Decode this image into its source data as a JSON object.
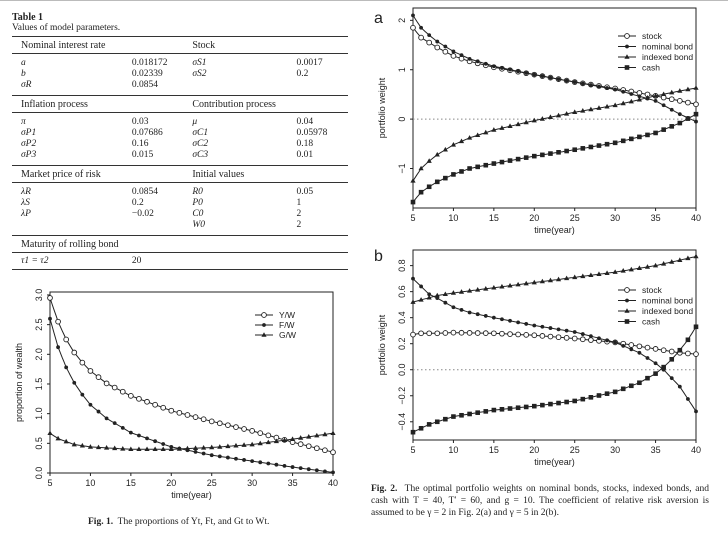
{
  "table1": {
    "title": "Table 1",
    "subtitle": "Values of model parameters.",
    "sections": [
      {
        "left": "Nominal interest rate",
        "right": "Stock",
        "rows": [
          [
            "a",
            "0.018172",
            "σS1",
            "0.0017"
          ],
          [
            "b",
            "0.02339",
            "σS2",
            "0.2"
          ],
          [
            "σR",
            "0.0854",
            "",
            ""
          ]
        ]
      },
      {
        "left": "Inflation process",
        "right": "Contribution process",
        "rows": [
          [
            "π",
            "0.03",
            "μ",
            "0.04"
          ],
          [
            "σP1",
            "0.07686",
            "σC1",
            "0.05978"
          ],
          [
            "σP2",
            "0.16",
            "σC2",
            "0.18"
          ],
          [
            "σP3",
            "0.015",
            "σC3",
            "0.01"
          ]
        ]
      },
      {
        "left": "Market price of risk",
        "right": "Initial values",
        "rows": [
          [
            "λR",
            "0.0854",
            "R0",
            "0.05"
          ],
          [
            "λS",
            "0.2",
            "P0",
            "1"
          ],
          [
            "λP",
            "−0.02",
            "C0",
            "2"
          ],
          [
            "",
            "",
            "W0",
            "2"
          ]
        ]
      },
      {
        "left": "Maturity of rolling bond",
        "right": "",
        "rows": [
          [
            "τ1 = τ2",
            "20",
            "",
            ""
          ]
        ]
      }
    ]
  },
  "fig1_caption": {
    "label": "Fig. 1.",
    "text": "The proportions of Yt, Ft, and Gt to Wt."
  },
  "fig2_caption": {
    "label": "Fig. 2.",
    "text": "The optimal portfolio weights on nominal bonds, stocks, indexed bonds, and cash with T = 40, T′ = 60, and g = 10. The coefficient of relative risk aversion is assumed to be γ = 2 in Fig. 2(a) and γ = 5 in 2(b)."
  },
  "chart_data": [
    {
      "id": "fig1",
      "type": "line",
      "xlabel": "time(year)",
      "ylabel": "proportion of wealth",
      "xlim": [
        5,
        40
      ],
      "ylim": [
        0,
        3.05
      ],
      "xticks": [
        5,
        10,
        15,
        20,
        25,
        30,
        35,
        40
      ],
      "yticks": [
        0,
        0.5,
        1,
        1.5,
        2,
        2.5,
        3
      ],
      "ytick_labels": [
        "0.0",
        "0.5",
        "1.0",
        "1.5",
        "2.0",
        "2.5",
        "3.0"
      ],
      "legend": "top-right",
      "zero_line": false,
      "series": [
        {
          "name": "Y/W",
          "marker": "open-circle",
          "points": [
            [
              5,
              2.95
            ],
            [
              6,
              2.55
            ],
            [
              7,
              2.25
            ],
            [
              8,
              2.03
            ],
            [
              9,
              1.86
            ],
            [
              10,
              1.72
            ],
            [
              12,
              1.51
            ],
            [
              15,
              1.3
            ],
            [
              20,
              1.05
            ],
            [
              25,
              0.87
            ],
            [
              30,
              0.71
            ],
            [
              35,
              0.52
            ],
            [
              40,
              0.35
            ]
          ]
        },
        {
          "name": "F/W",
          "marker": "filled-circle",
          "points": [
            [
              5,
              2.6
            ],
            [
              6,
              2.12
            ],
            [
              7,
              1.78
            ],
            [
              8,
              1.52
            ],
            [
              9,
              1.32
            ],
            [
              10,
              1.15
            ],
            [
              12,
              0.92
            ],
            [
              15,
              0.68
            ],
            [
              20,
              0.44
            ],
            [
              25,
              0.3
            ],
            [
              30,
              0.2
            ],
            [
              35,
              0.1
            ],
            [
              40,
              0.01
            ]
          ]
        },
        {
          "name": "G/W",
          "marker": "triangle",
          "points": [
            [
              5,
              0.67
            ],
            [
              6,
              0.58
            ],
            [
              8,
              0.48
            ],
            [
              10,
              0.44
            ],
            [
              15,
              0.4
            ],
            [
              20,
              0.4
            ],
            [
              25,
              0.43
            ],
            [
              30,
              0.48
            ],
            [
              35,
              0.57
            ],
            [
              40,
              0.67
            ]
          ]
        }
      ]
    },
    {
      "id": "fig2a",
      "panel": "a",
      "type": "line",
      "xlabel": "time(year)",
      "ylabel": "portfolio weight",
      "xlim": [
        5,
        40
      ],
      "ylim": [
        -1.8,
        2.25
      ],
      "xticks": [
        5,
        10,
        15,
        20,
        25,
        30,
        35,
        40
      ],
      "yticks": [
        -1,
        0,
        1,
        2
      ],
      "ytick_labels": [
        "−1",
        "0",
        "1",
        "2"
      ],
      "legend": "top-right",
      "zero_line": true,
      "series": [
        {
          "name": "stock",
          "marker": "open-circle",
          "points": [
            [
              5,
              1.85
            ],
            [
              6,
              1.65
            ],
            [
              7,
              1.55
            ],
            [
              8,
              1.45
            ],
            [
              10,
              1.28
            ],
            [
              12,
              1.17
            ],
            [
              15,
              1.05
            ],
            [
              20,
              0.9
            ],
            [
              25,
              0.75
            ],
            [
              30,
              0.62
            ],
            [
              35,
              0.47
            ],
            [
              38,
              0.37
            ],
            [
              40,
              0.3
            ]
          ]
        },
        {
          "name": "nominal bond",
          "marker": "filled-circle",
          "points": [
            [
              5,
              2.1
            ],
            [
              6,
              1.85
            ],
            [
              7,
              1.7
            ],
            [
              8,
              1.57
            ],
            [
              10,
              1.37
            ],
            [
              12,
              1.22
            ],
            [
              15,
              1.07
            ],
            [
              20,
              0.9
            ],
            [
              25,
              0.75
            ],
            [
              30,
              0.6
            ],
            [
              35,
              0.37
            ],
            [
              38,
              0.1
            ],
            [
              40,
              -0.05
            ]
          ]
        },
        {
          "name": "indexed bond",
          "marker": "triangle",
          "points": [
            [
              5,
              -1.25
            ],
            [
              6,
              -1.0
            ],
            [
              7,
              -0.85
            ],
            [
              8,
              -0.72
            ],
            [
              10,
              -0.52
            ],
            [
              12,
              -0.38
            ],
            [
              15,
              -0.22
            ],
            [
              20,
              -0.03
            ],
            [
              25,
              0.14
            ],
            [
              30,
              0.28
            ],
            [
              35,
              0.47
            ],
            [
              38,
              0.57
            ],
            [
              40,
              0.63
            ]
          ]
        },
        {
          "name": "cash",
          "marker": "square",
          "points": [
            [
              5,
              -1.68
            ],
            [
              6,
              -1.48
            ],
            [
              7,
              -1.37
            ],
            [
              8,
              -1.27
            ],
            [
              10,
              -1.12
            ],
            [
              12,
              -1.0
            ],
            [
              15,
              -0.9
            ],
            [
              20,
              -0.75
            ],
            [
              25,
              -0.62
            ],
            [
              30,
              -0.48
            ],
            [
              35,
              -0.28
            ],
            [
              38,
              -0.08
            ],
            [
              40,
              0.1
            ]
          ]
        }
      ]
    },
    {
      "id": "fig2b",
      "panel": "b",
      "type": "line",
      "xlabel": "time(year)",
      "ylabel": "portfolio weight",
      "xlim": [
        5,
        40
      ],
      "ylim": [
        -0.54,
        0.92
      ],
      "xticks": [
        5,
        10,
        15,
        20,
        25,
        30,
        35,
        40
      ],
      "yticks": [
        -0.4,
        -0.2,
        0,
        0.2,
        0.4,
        0.6,
        0.8
      ],
      "ytick_labels": [
        "−0.4",
        "−0.2",
        "0.0",
        "0.2",
        "0.4",
        "0.6",
        "0.8"
      ],
      "legend": "top-right",
      "zero_line": true,
      "series": [
        {
          "name": "stock",
          "marker": "open-circle",
          "points": [
            [
              5,
              0.27
            ],
            [
              6,
              0.28
            ],
            [
              8,
              0.28
            ],
            [
              10,
              0.285
            ],
            [
              15,
              0.28
            ],
            [
              20,
              0.265
            ],
            [
              25,
              0.24
            ],
            [
              30,
              0.21
            ],
            [
              35,
              0.16
            ],
            [
              38,
              0.13
            ],
            [
              40,
              0.12
            ]
          ]
        },
        {
          "name": "nominal bond",
          "marker": "filled-circle",
          "points": [
            [
              5,
              0.7
            ],
            [
              6,
              0.64
            ],
            [
              7,
              0.58
            ],
            [
              8,
              0.55
            ],
            [
              10,
              0.48
            ],
            [
              12,
              0.44
            ],
            [
              15,
              0.4
            ],
            [
              20,
              0.34
            ],
            [
              25,
              0.29
            ],
            [
              30,
              0.21
            ],
            [
              33,
              0.13
            ],
            [
              35,
              0.05
            ],
            [
              36,
              0.0
            ],
            [
              38,
              -0.13
            ],
            [
              40,
              -0.32
            ]
          ]
        },
        {
          "name": "indexed bond",
          "marker": "triangle",
          "points": [
            [
              5,
              0.52
            ],
            [
              8,
              0.57
            ],
            [
              10,
              0.59
            ],
            [
              15,
              0.63
            ],
            [
              20,
              0.67
            ],
            [
              25,
              0.71
            ],
            [
              30,
              0.75
            ],
            [
              35,
              0.8
            ],
            [
              40,
              0.87
            ]
          ]
        },
        {
          "name": "cash",
          "marker": "square",
          "points": [
            [
              5,
              -0.48
            ],
            [
              6,
              -0.45
            ],
            [
              7,
              -0.42
            ],
            [
              8,
              -0.4
            ],
            [
              10,
              -0.36
            ],
            [
              15,
              -0.31
            ],
            [
              20,
              -0.28
            ],
            [
              25,
              -0.24
            ],
            [
              30,
              -0.17
            ],
            [
              33,
              -0.1
            ],
            [
              35,
              -0.03
            ],
            [
              36,
              0.02
            ],
            [
              37,
              0.08
            ],
            [
              38,
              0.15
            ],
            [
              39,
              0.23
            ],
            [
              40,
              0.33
            ]
          ]
        }
      ]
    }
  ]
}
